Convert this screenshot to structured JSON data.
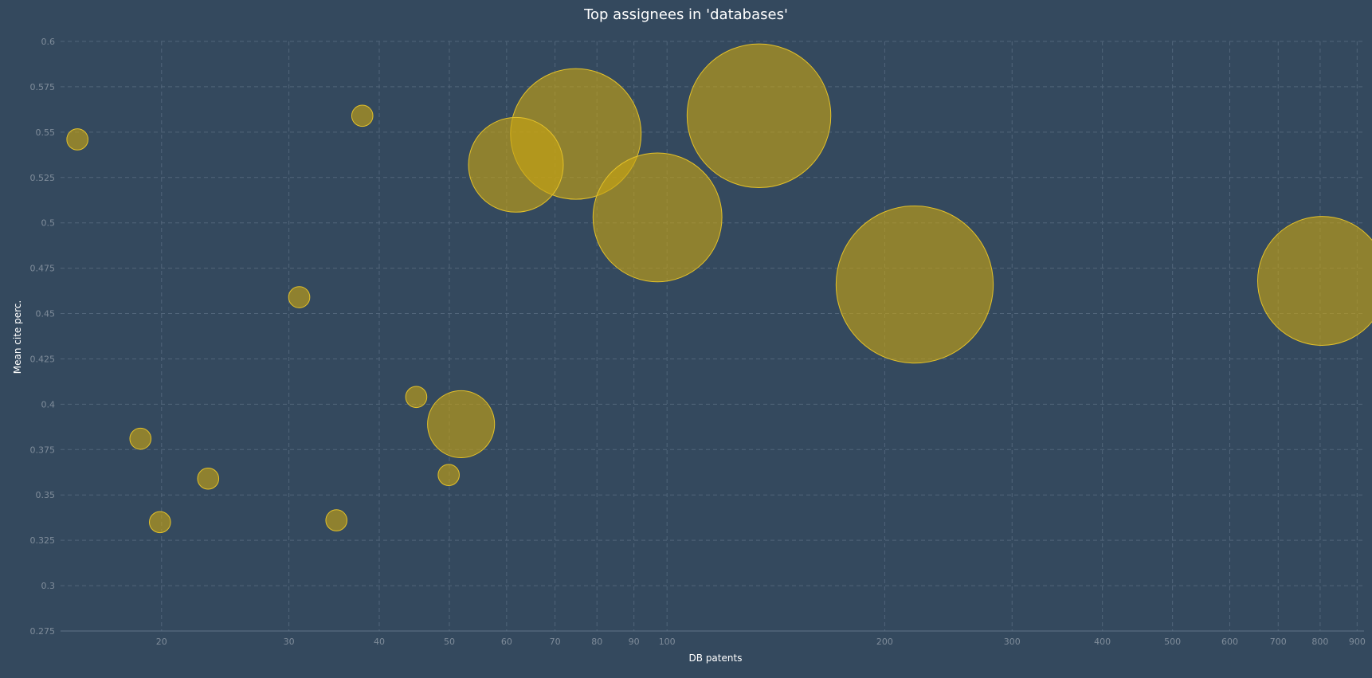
{
  "chart_data": {
    "type": "scatter",
    "title": "Top assignees in 'databases'",
    "xlabel": "DB patents",
    "ylabel": "Mean cite perc.",
    "x_scale": "log",
    "xlim": [
      14.5,
      920
    ],
    "ylim": [
      0.275,
      0.6
    ],
    "x_ticks": [
      20,
      30,
      40,
      50,
      60,
      70,
      80,
      90,
      100,
      200,
      300,
      400,
      500,
      600,
      700,
      800,
      900
    ],
    "y_ticks": [
      0.275,
      0.3,
      0.325,
      0.35,
      0.375,
      0.4,
      0.425,
      0.45,
      0.475,
      0.5,
      0.525,
      0.55,
      0.575,
      0.6
    ],
    "grid": true,
    "colors": {
      "background": "#34495e",
      "bubble_fill": "#c8a514",
      "bubble_stroke": "#e3c12a"
    },
    "points": [
      {
        "x": 15.3,
        "y": 0.546,
        "size": 1
      },
      {
        "x": 18.7,
        "y": 0.381,
        "size": 1
      },
      {
        "x": 19.9,
        "y": 0.335,
        "size": 1
      },
      {
        "x": 23.2,
        "y": 0.359,
        "size": 1
      },
      {
        "x": 31.0,
        "y": 0.459,
        "size": 1
      },
      {
        "x": 34.9,
        "y": 0.336,
        "size": 1
      },
      {
        "x": 37.9,
        "y": 0.559,
        "size": 1
      },
      {
        "x": 45.0,
        "y": 0.404,
        "size": 1
      },
      {
        "x": 49.9,
        "y": 0.361,
        "size": 1
      },
      {
        "x": 51.9,
        "y": 0.389,
        "size": 10
      },
      {
        "x": 61.8,
        "y": 0.532,
        "size": 20
      },
      {
        "x": 74.8,
        "y": 0.549,
        "size": 38
      },
      {
        "x": 97.0,
        "y": 0.503,
        "size": 37
      },
      {
        "x": 134.0,
        "y": 0.559,
        "size": 46
      },
      {
        "x": 220.0,
        "y": 0.466,
        "size": 55
      },
      {
        "x": 805.0,
        "y": 0.468,
        "size": 37
      }
    ]
  }
}
